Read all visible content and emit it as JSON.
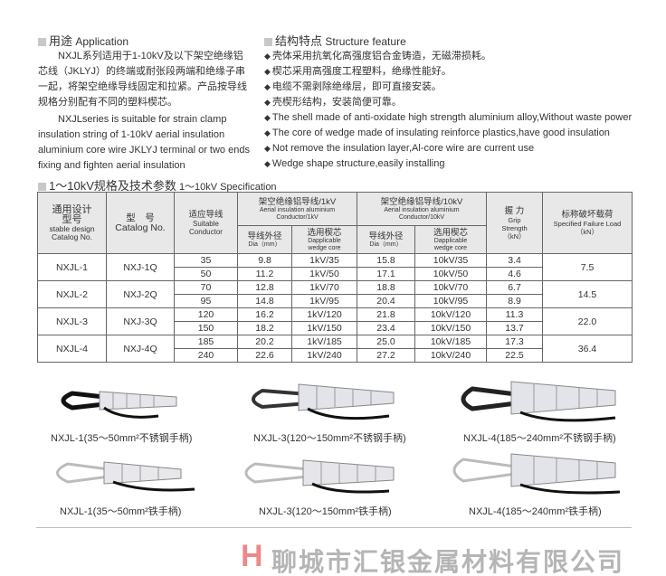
{
  "application": {
    "title_zh": "用途",
    "title_en": "Application",
    "para_zh": "NXJL系列适用于1-10kV及以下架空绝缘铝芯线（JKLYJ）的终端或耐张段两端和绝缘子串一起，将架空绝缘导线固定和拉紧。产品按导线规格分别配有不同的塑料楔芯。",
    "para_en": "NXJLseries is suitable for strain clamp insulation string of 1-10kV aerial insulation aluminium core wire JKLYJ terminal or two ends fixing and fighten aerial insulation"
  },
  "structure": {
    "title_zh": "结构特点",
    "title_en": "Structure feature",
    "items": [
      "壳体采用抗氧化高强度铝合金铸造，无磁滞损耗。",
      "楔芯采用高强度工程塑料，绝缘性能好。",
      "电缆不需剥除绝缘层，即可直接安装。",
      "壳楔形结构，安装简便可靠。",
      "The shell made of anti-oxidate high strength aluminium alloy,Without waste power",
      "The core of wedge made of insulating reinforce plastics,have good insulation",
      "Not remove the insulation layer,Al-core wire are current use",
      "Wedge shape structure,easily installing"
    ]
  },
  "spec": {
    "title_zh": "1～10kV规格及技术参数",
    "title_en": "1～10kV Specification",
    "headers": {
      "design_zh": "通用设计型号",
      "design_en": "stable design Catalog No.",
      "catalog_zh": "型　号",
      "catalog_en": "Catalog No.",
      "cond_zh": "适应导线",
      "cond_en": "Suitable Conductor",
      "kv1_zh": "架空绝缘铝导线/1kV",
      "kv1_en": "Aerial insulation aluminium Conductor/1kV",
      "kv10_zh": "架空绝缘铝导线/10kV",
      "kv10_en": "Aerial insulation aluminium Conductor/10kV",
      "dia_zh": "导线外径",
      "dia_en": "Dia（mm）",
      "wedge_zh": "选用楔芯",
      "wedge_en": "Dapplicable wedge core",
      "grip_zh": "握 力",
      "grip_en": "Grip Strength（kN）",
      "load_zh": "标称破坏载荷",
      "load_en": "Specified Failure Load（kN）"
    },
    "groups": [
      {
        "design": "NXJL-1",
        "catalog": "NXJ-1Q",
        "load": "7.5",
        "rows": [
          [
            "35",
            "9.8",
            "1kV/35",
            "15.8",
            "10kV/35",
            "3.4"
          ],
          [
            "50",
            "11.2",
            "1kV/50",
            "17.1",
            "10kV/50",
            "4.6"
          ]
        ]
      },
      {
        "design": "NXJL-2",
        "catalog": "NXJ-2Q",
        "load": "14.5",
        "rows": [
          [
            "70",
            "12.8",
            "1kV/70",
            "18.8",
            "10kV/70",
            "6.7"
          ],
          [
            "95",
            "14.8",
            "1kV/95",
            "20.4",
            "10kV/95",
            "8.9"
          ]
        ]
      },
      {
        "design": "NXJL-3",
        "catalog": "NXJ-3Q",
        "load": "22.0",
        "rows": [
          [
            "120",
            "16.2",
            "1kV/120",
            "21.8",
            "10kV/120",
            "11.3"
          ],
          [
            "150",
            "18.2",
            "1kV/150",
            "23.4",
            "10kV/150",
            "13.7"
          ]
        ]
      },
      {
        "design": "NXJL-4",
        "catalog": "NXJ-4Q",
        "load": "36.4",
        "rows": [
          [
            "185",
            "20.2",
            "1kV/185",
            "25.0",
            "10kV/185",
            "17.3"
          ],
          [
            "240",
            "22.6",
            "1kV/240",
            "27.2",
            "10kV/240",
            "22.5"
          ]
        ]
      }
    ]
  },
  "watermark": "聊城市汇银金属材料有限公司",
  "products": [
    "NXJL-1(35～50mm²不锈钢手柄)",
    "NXJL-3(120～150mm²不锈钢手柄)",
    "NXJL-4(185～240mm²不锈钢手柄)",
    "NXJL-1(35～50mm²铁手柄)",
    "NXJL-3(120～150mm²铁手柄)",
    "NXJL-4(185～240mm²铁手柄)"
  ]
}
